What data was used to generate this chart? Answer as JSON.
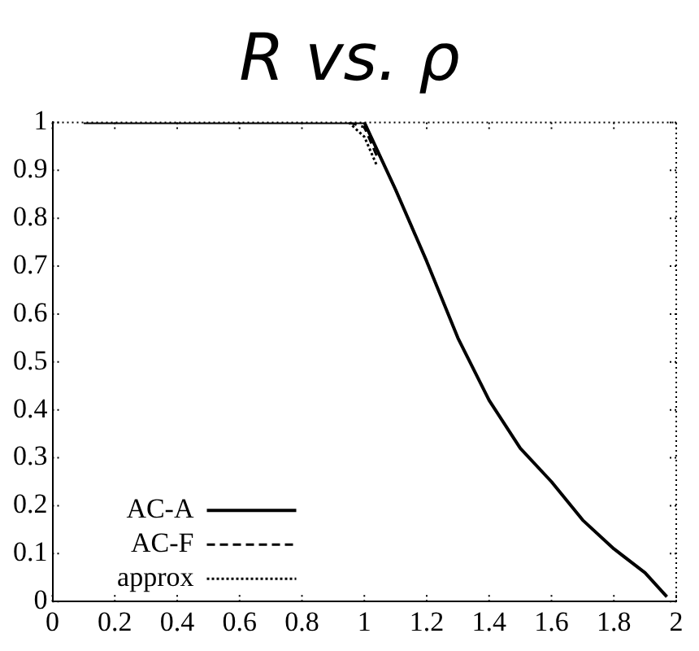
{
  "chart_data": {
    "type": "line",
    "title": "R vs. ρ",
    "xlim": [
      0,
      2
    ],
    "ylim": [
      0,
      1
    ],
    "xticks": [
      0,
      0.2,
      0.4,
      0.6,
      0.8,
      1,
      1.2,
      1.4,
      1.6,
      1.8,
      2
    ],
    "yticks": [
      0,
      0.1,
      0.2,
      0.3,
      0.4,
      0.5,
      0.6,
      0.7,
      0.8,
      0.9,
      1
    ],
    "grid": false,
    "legend": "bottom left",
    "marker": "none",
    "series": [
      {
        "name": "AC-A",
        "color": "#000000",
        "line_style": "solid",
        "x": [
          0.1,
          0.5,
          1,
          1.1,
          1.2,
          1.3,
          1.4,
          1.5,
          1.6,
          1.7,
          1.8,
          1.9,
          1.97
        ],
        "values": [
          1,
          1,
          1,
          0.86,
          0.71,
          0.55,
          0.42,
          0.32,
          0.25,
          0.17,
          0.11,
          0.06,
          0.01
        ]
      },
      {
        "name": "AC-F",
        "color": "#000000",
        "line_style": "dashed",
        "x": [
          0.95,
          1,
          1.04
        ],
        "values": [
          1,
          0.99,
          0.93
        ]
      },
      {
        "name": "approx",
        "color": "#000000",
        "line_style": "dotted",
        "x": [
          0.95,
          1,
          1.04
        ],
        "values": [
          1,
          0.97,
          0.91
        ]
      }
    ]
  }
}
